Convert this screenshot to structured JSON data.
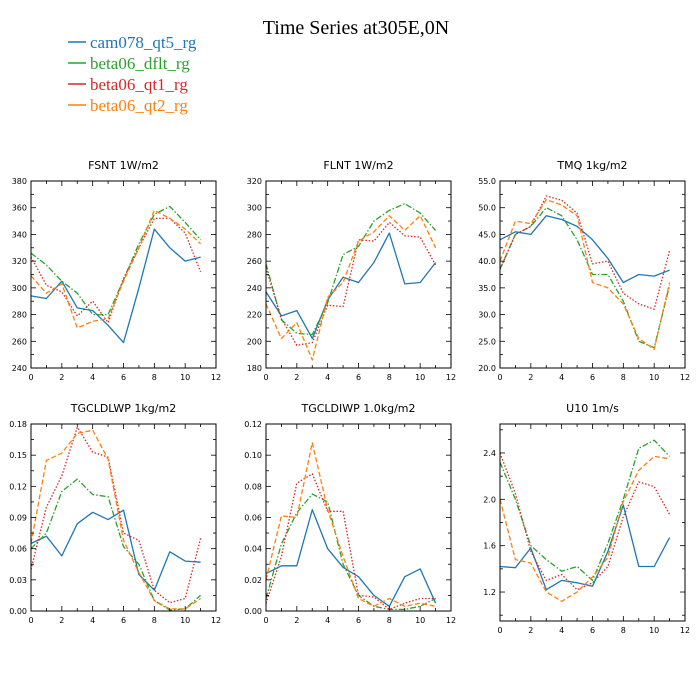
{
  "title": "Time Series at305E,0N",
  "colors": {
    "cam078_qt5_rg": "#1f77b4",
    "beta06_dflt_rg": "#2ca02c",
    "beta06_qt1_rg": "#d62728",
    "beta06_qt2_rg": "#ff7f0e"
  },
  "legend": [
    {
      "name": "cam078_qt5_rg",
      "style": "solid"
    },
    {
      "name": "beta06_dflt_rg",
      "style": "dashdot"
    },
    {
      "name": "beta06_qt1_rg",
      "style": "dotted"
    },
    {
      "name": "beta06_qt2_rg",
      "style": "dashed"
    }
  ],
  "chart_data": [
    {
      "type": "line",
      "title": "FSNT   1W/m2",
      "x": [
        0,
        1,
        2,
        3,
        4,
        5,
        6,
        7,
        8,
        9,
        10,
        11
      ],
      "xlim": [
        0,
        12
      ],
      "xticks": [
        0,
        2,
        4,
        6,
        8,
        10,
        12
      ],
      "xtick_labels": [
        "0",
        "2",
        "4",
        "6",
        "8",
        "10",
        "12"
      ],
      "ylim": [
        240,
        380
      ],
      "yticks": [
        240,
        260,
        280,
        300,
        320,
        340,
        360,
        380
      ],
      "ytick_labels": [
        "240",
        "260",
        "280",
        "300",
        "320",
        "340",
        "360",
        "380"
      ],
      "series": [
        {
          "name": "cam078_qt5_rg",
          "values": [
            294,
            292,
            305,
            285,
            283,
            272,
            259,
            300,
            344,
            330,
            320,
            323
          ]
        },
        {
          "name": "beta06_dflt_rg",
          "values": [
            326,
            317,
            305,
            296,
            280,
            280,
            306,
            333,
            355,
            361,
            349,
            336
          ]
        },
        {
          "name": "beta06_qt1_rg",
          "values": [
            323,
            302,
            297,
            279,
            290,
            274,
            307,
            330,
            352,
            352,
            341,
            312
          ]
        },
        {
          "name": "beta06_qt2_rg",
          "values": [
            309,
            296,
            303,
            270,
            275,
            277,
            305,
            330,
            358,
            352,
            344,
            333
          ]
        }
      ]
    },
    {
      "type": "line",
      "title": "FLNT   1W/m2",
      "x": [
        0,
        1,
        2,
        3,
        4,
        5,
        6,
        7,
        8,
        9,
        10,
        11
      ],
      "xlim": [
        0,
        12
      ],
      "xticks": [
        0,
        2,
        4,
        6,
        8,
        10,
        12
      ],
      "xtick_labels": [
        "0",
        "2",
        "4",
        "6",
        "8",
        "10",
        "12"
      ],
      "ylim": [
        180,
        320
      ],
      "yticks": [
        180,
        200,
        220,
        240,
        260,
        280,
        300,
        320
      ],
      "ytick_labels": [
        "180",
        "200",
        "220",
        "240",
        "260",
        "280",
        "300",
        "320"
      ],
      "series": [
        {
          "name": "cam078_qt5_rg",
          "values": [
            237,
            219,
            223,
            202,
            231,
            248,
            244,
            259,
            281,
            243,
            244,
            259
          ]
        },
        {
          "name": "beta06_dflt_rg",
          "values": [
            258,
            216,
            206,
            205,
            229,
            265,
            271,
            290,
            298,
            303,
            296,
            283
          ]
        },
        {
          "name": "beta06_qt1_rg",
          "values": [
            255,
            217,
            197,
            199,
            227,
            226,
            276,
            275,
            289,
            279,
            278,
            257
          ]
        },
        {
          "name": "beta06_qt2_rg",
          "values": [
            228,
            202,
            214,
            186,
            233,
            244,
            275,
            282,
            294,
            283,
            294,
            270
          ]
        }
      ]
    },
    {
      "type": "line",
      "title": "TMQ   1kg/m2",
      "x": [
        0,
        1,
        2,
        3,
        4,
        5,
        6,
        7,
        8,
        9,
        10,
        11
      ],
      "xlim": [
        0,
        12
      ],
      "xticks": [
        0,
        2,
        4,
        6,
        8,
        10,
        12
      ],
      "xtick_labels": [
        "0",
        "2",
        "4",
        "6",
        "8",
        "10",
        "12"
      ],
      "ylim": [
        20,
        55
      ],
      "yticks": [
        20,
        25,
        30,
        35,
        40,
        45,
        50,
        55
      ],
      "ytick_labels": [
        "20.0",
        "25.0",
        "30.0",
        "35.0",
        "40.0",
        "45.0",
        "50.0",
        "55.0"
      ],
      "series": [
        {
          "name": "cam078_qt5_rg",
          "values": [
            44,
            45.5,
            45,
            48.5,
            47.8,
            46.5,
            44,
            40.5,
            36,
            37.5,
            37.2,
            38.3
          ]
        },
        {
          "name": "beta06_dflt_rg",
          "values": [
            38.5,
            45,
            46.5,
            50,
            48.5,
            44,
            37.5,
            37.5,
            32.5,
            25,
            23.8,
            35.5
          ]
        },
        {
          "name": "beta06_qt1_rg",
          "values": [
            38.5,
            45,
            46.5,
            52.2,
            51.4,
            49,
            39.5,
            40,
            34,
            32,
            31,
            42
          ]
        },
        {
          "name": "beta06_qt2_rg",
          "values": [
            40,
            47.5,
            47,
            51.5,
            50.5,
            48.5,
            36,
            35,
            32,
            25.5,
            23.5,
            36
          ]
        }
      ]
    },
    {
      "type": "line",
      "title": "TGCLDLWP   1kg/m2",
      "x": [
        0,
        1,
        2,
        3,
        4,
        5,
        6,
        7,
        8,
        9,
        10,
        11
      ],
      "xlim": [
        0,
        12
      ],
      "xticks": [
        0,
        2,
        4,
        6,
        8,
        10,
        12
      ],
      "xtick_labels": [
        "0",
        "2",
        "4",
        "6",
        "8",
        "10",
        "12"
      ],
      "ylim": [
        0,
        0.18
      ],
      "yticks": [
        0,
        0.03,
        0.06,
        0.09,
        0.12,
        0.15,
        0.18
      ],
      "ytick_labels": [
        "0.00",
        "0.03",
        "0.06",
        "0.09",
        "0.12",
        "0.15",
        "0.18"
      ],
      "series": [
        {
          "name": "cam078_qt5_rg",
          "values": [
            0.065,
            0.072,
            0.053,
            0.084,
            0.095,
            0.088,
            0.097,
            0.035,
            0.02,
            0.057,
            0.048,
            0.047
          ]
        },
        {
          "name": "beta06_dflt_rg",
          "values": [
            0.06,
            0.075,
            0.115,
            0.127,
            0.112,
            0.11,
            0.062,
            0.045,
            0.01,
            0.001,
            0.002,
            0.015
          ]
        },
        {
          "name": "beta06_qt1_rg",
          "values": [
            0.04,
            0.1,
            0.13,
            0.177,
            0.153,
            0.148,
            0.075,
            0.068,
            0.02,
            0.008,
            0.012,
            0.07
          ]
        },
        {
          "name": "beta06_qt2_rg",
          "values": [
            0.065,
            0.145,
            0.152,
            0.171,
            0.174,
            0.146,
            0.068,
            0.037,
            0.01,
            0.002,
            0.002,
            0.012
          ]
        }
      ]
    },
    {
      "type": "line",
      "title": "TGCLDIWP   1.0kg/m2",
      "x": [
        0,
        1,
        2,
        3,
        4,
        5,
        6,
        7,
        8,
        9,
        10,
        11
      ],
      "xlim": [
        0,
        12
      ],
      "xticks": [
        0,
        2,
        4,
        6,
        8,
        10,
        12
      ],
      "xtick_labels": [
        "0",
        "2",
        "4",
        "6",
        "8",
        "10",
        "12"
      ],
      "ylim": [
        0,
        0.12
      ],
      "yticks": [
        0,
        0.02,
        0.04,
        0.06,
        0.08,
        0.1,
        0.12
      ],
      "ytick_labels": [
        "0.00",
        "0.02",
        "0.04",
        "0.06",
        "0.08",
        "0.10",
        "0.12"
      ],
      "series": [
        {
          "name": "cam078_qt5_rg",
          "values": [
            0.024,
            0.029,
            0.029,
            0.065,
            0.04,
            0.028,
            0.022,
            0.01,
            0.003,
            0.022,
            0.027,
            0.005
          ]
        },
        {
          "name": "beta06_dflt_rg",
          "values": [
            0.008,
            0.043,
            0.063,
            0.075,
            0.07,
            0.03,
            0.01,
            0.003,
            0.001,
            0.001,
            0.003,
            0.008
          ]
        },
        {
          "name": "beta06_qt1_rg",
          "values": [
            0.005,
            0.035,
            0.082,
            0.088,
            0.064,
            0.064,
            0.01,
            0.009,
            0.001,
            0.005,
            0.008,
            0.008
          ]
        },
        {
          "name": "beta06_qt2_rg",
          "values": [
            0.02,
            0.061,
            0.06,
            0.108,
            0.065,
            0.035,
            0.008,
            0.003,
            0.008,
            0.003,
            0.005,
            0.003
          ]
        }
      ]
    },
    {
      "type": "line",
      "title": "U10   1m/s",
      "x": [
        0,
        1,
        2,
        3,
        4,
        5,
        6,
        7,
        8,
        9,
        10,
        11
      ],
      "xlim": [
        0,
        12
      ],
      "xticks": [
        0,
        2,
        4,
        6,
        8,
        10,
        12
      ],
      "xtick_labels": [
        "0",
        "2",
        "4",
        "6",
        "8",
        "10",
        "12"
      ],
      "ylim": [
        0.95,
        2.65
      ],
      "yticks": [
        1.2,
        1.6,
        2.0,
        2.4
      ],
      "ytick_labels": [
        "1.2",
        "1.6",
        "2.0",
        "2.4"
      ],
      "series": [
        {
          "name": "cam078_qt5_rg",
          "values": [
            1.42,
            1.41,
            1.58,
            1.22,
            1.3,
            1.28,
            1.25,
            1.55,
            1.95,
            1.42,
            1.42,
            1.67
          ]
        },
        {
          "name": "beta06_dflt_rg",
          "values": [
            2.32,
            2.0,
            1.6,
            1.48,
            1.38,
            1.42,
            1.3,
            1.62,
            2.0,
            2.44,
            2.51,
            2.37
          ]
        },
        {
          "name": "beta06_qt1_rg",
          "values": [
            2.4,
            2.05,
            1.55,
            1.3,
            1.35,
            1.22,
            1.28,
            1.42,
            1.85,
            2.15,
            2.11,
            1.87
          ]
        },
        {
          "name": "beta06_qt2_rg",
          "values": [
            2.0,
            1.48,
            1.45,
            1.2,
            1.12,
            1.2,
            1.33,
            1.5,
            1.98,
            2.25,
            2.37,
            2.35
          ]
        }
      ]
    }
  ]
}
